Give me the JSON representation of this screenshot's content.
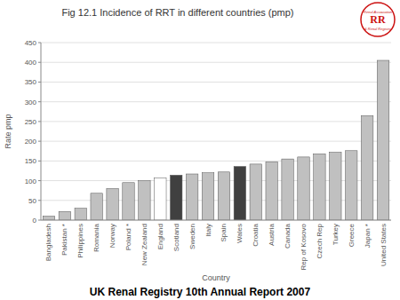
{
  "chart_data": {
    "type": "bar",
    "title": "Fig 12.1  Incidence of RRT in different countries (pmp)",
    "footer": "UK Renal Registry 10th Annual Report 2007",
    "x_label": "Country",
    "y_label": "Rate pmp",
    "categories": [
      "Bangladesh",
      "Pakistan *",
      "Philippines",
      "Romania",
      "Norway",
      "Poland *",
      "New Zealand",
      "England",
      "Scotland",
      "Sweden",
      "Italy",
      "Spain",
      "Wales",
      "Croatia",
      "Austria",
      "Canada",
      "Rep of Kosovo",
      "Czech Rep",
      "Turkey",
      "Greece",
      "Japan *",
      "United States"
    ],
    "values": [
      10,
      22,
      30,
      68,
      80,
      95,
      100,
      107,
      114,
      117,
      120,
      122,
      136,
      142,
      148,
      155,
      160,
      168,
      172,
      176,
      265,
      405
    ],
    "colors": [
      "#c0c0c0",
      "#c0c0c0",
      "#c0c0c0",
      "#c0c0c0",
      "#c0c0c0",
      "#c0c0c0",
      "#c0c0c0",
      "#ffffff",
      "#404040",
      "#c0c0c0",
      "#c0c0c0",
      "#c0c0c0",
      "#404040",
      "#c0c0c0",
      "#c0c0c0",
      "#c0c0c0",
      "#c0c0c0",
      "#c0c0c0",
      "#c0c0c0",
      "#c0c0c0",
      "#c0c0c0",
      "#c0c0c0"
    ],
    "ylim": [
      0,
      450
    ],
    "yticks": [
      0,
      50,
      100,
      150,
      200,
      250,
      300,
      350,
      400,
      450
    ],
    "grid": true,
    "annotations": [
      {
        "text": "Renal Association",
        "color": "#cc1111"
      },
      {
        "text": "RR",
        "color": "#cc1111"
      },
      {
        "text": "& Renal Registry",
        "color": "#cc1111"
      }
    ]
  }
}
